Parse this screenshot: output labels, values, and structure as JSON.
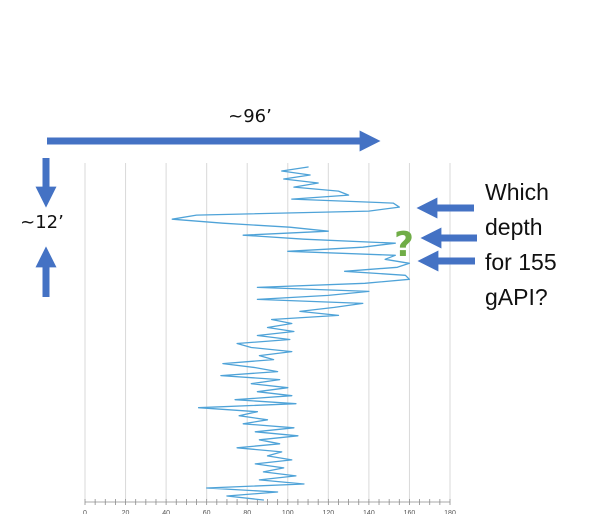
{
  "colors": {
    "curve": "#4fa3d8",
    "arrow": "#4472c4",
    "question_mark": "#70ad47",
    "gridline": "#d9d9d9",
    "axis": "#8c8c8c"
  },
  "annotations": {
    "width_label": "~96’",
    "height_label": "~12’",
    "question_lines": [
      "Which",
      "depth",
      "for 155",
      "gAPI?"
    ],
    "question_mark": "?"
  },
  "chart_data": {
    "type": "line",
    "orientation": "vertical-depth",
    "title": "",
    "xlabel": "",
    "ylabel": "",
    "xlim": [
      0,
      180
    ],
    "x_ticks": [
      "0",
      "20",
      "40",
      "60",
      "80",
      "100",
      "120",
      "140",
      "160",
      "180"
    ],
    "minor_tick_step": 5,
    "grid": true,
    "depth_ticks": false,
    "series": [
      {
        "values": [
          110,
          97,
          111,
          98,
          115,
          103,
          125,
          130,
          102,
          152,
          155,
          140,
          55,
          43,
          68,
          101,
          120,
          78,
          108,
          153,
          137,
          100,
          153,
          148,
          160,
          154,
          128,
          158,
          160,
          138,
          85,
          140,
          120,
          85,
          137,
          123,
          106,
          125,
          92,
          102,
          90,
          103,
          85,
          101,
          75,
          82,
          102,
          86,
          93,
          68,
          84,
          95,
          67,
          96,
          82,
          100,
          85,
          102,
          74,
          104,
          56,
          85,
          76,
          90,
          78,
          103,
          84,
          105,
          86,
          96,
          75,
          97,
          90,
          102,
          84,
          98,
          88,
          104,
          86,
          108,
          60,
          95,
          70,
          88
        ]
      }
    ]
  }
}
